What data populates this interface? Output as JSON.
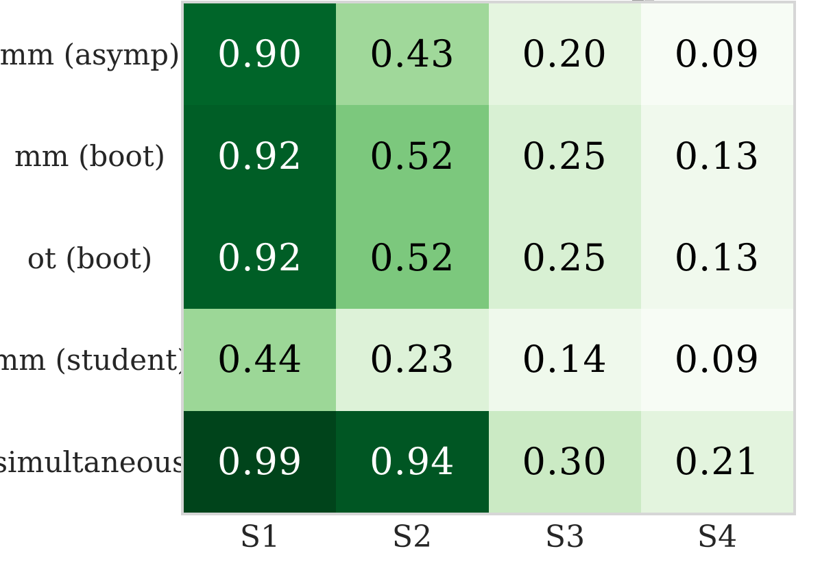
{
  "chart_data": {
    "type": "heatmap",
    "title": "",
    "xlabel": "",
    "ylabel": "",
    "rows": [
      "mm (asymp)",
      "mm (boot)",
      "ot (boot)",
      "mm (student)",
      "simultaneous"
    ],
    "columns": [
      "S1",
      "S2",
      "S3",
      "S4"
    ],
    "values": [
      [
        0.9,
        0.43,
        0.2,
        0.09
      ],
      [
        0.92,
        0.52,
        0.25,
        0.13
      ],
      [
        0.92,
        0.52,
        0.25,
        0.13
      ],
      [
        0.44,
        0.23,
        0.14,
        0.09
      ],
      [
        0.99,
        0.94,
        0.3,
        0.21
      ]
    ],
    "colormap": "Greens",
    "vmin": 0.09,
    "vmax": 0.99,
    "annotation_format": "0.00",
    "grid": false,
    "legend_position": "none",
    "cell_colors": [
      [
        "#006529",
        "#a0d89a",
        "#e5f5e0",
        "#f7fcf5"
      ],
      [
        "#005e26",
        "#7cc87d",
        "#d8f0d3",
        "#f0f9ed"
      ],
      [
        "#005e26",
        "#7cc87d",
        "#d8f0d3",
        "#f0f9ed"
      ],
      [
        "#9cd797",
        "#ddf2d8",
        "#eff9ec",
        "#f7fcf5"
      ],
      [
        "#00441b",
        "#005623",
        "#cbeac4",
        "#e3f4de"
      ]
    ],
    "text_colors": [
      [
        "#ffffff",
        "#000000",
        "#000000",
        "#000000"
      ],
      [
        "#ffffff",
        "#000000",
        "#000000",
        "#000000"
      ],
      [
        "#ffffff",
        "#000000",
        "#000000",
        "#000000"
      ],
      [
        "#000000",
        "#000000",
        "#000000",
        "#000000"
      ],
      [
        "#ffffff",
        "#ffffff",
        "#000000",
        "#000000"
      ]
    ],
    "frame_color": "#d6d6d6",
    "tick_label_color": "#262626"
  }
}
